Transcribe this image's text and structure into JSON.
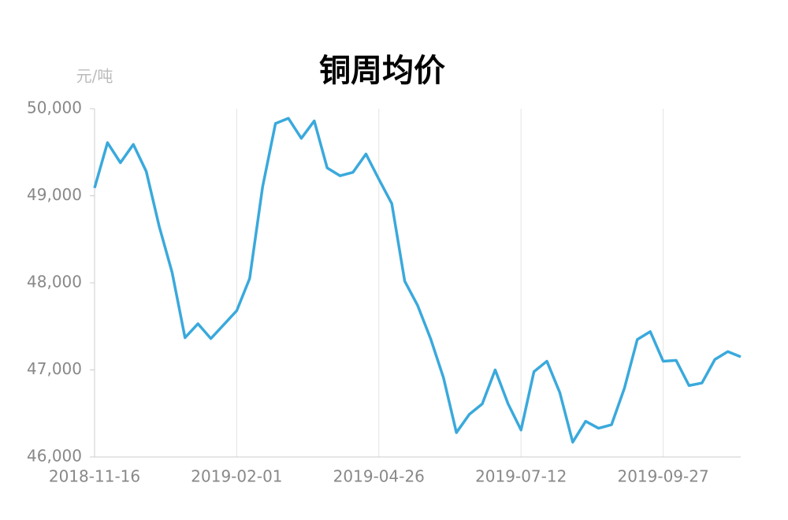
{
  "chart_data": {
    "type": "line",
    "title": "铜周均价",
    "y_label": "元/吨",
    "categories": [
      "2018-11-16",
      null,
      null,
      null,
      null,
      null,
      null,
      null,
      null,
      null,
      null,
      "2019-02-01",
      null,
      null,
      null,
      null,
      null,
      null,
      null,
      null,
      null,
      null,
      "2019-04-26",
      null,
      null,
      null,
      null,
      null,
      null,
      null,
      null,
      null,
      null,
      "2019-07-12",
      null,
      null,
      null,
      null,
      null,
      null,
      null,
      null,
      null,
      null,
      "2019-09-27",
      null,
      null,
      null,
      null,
      null,
      null
    ],
    "series": [
      {
        "name": "铜周均价",
        "color": "#3aa9dc",
        "values": [
          49090,
          49610,
          49380,
          49590,
          49280,
          48650,
          48120,
          47370,
          47530,
          47360,
          47520,
          47680,
          48050,
          49100,
          49830,
          49890,
          49660,
          49860,
          49320,
          49230,
          49270,
          49480,
          49190,
          48910,
          48020,
          47740,
          47360,
          46910,
          46280,
          46490,
          46610,
          47000,
          46610,
          46310,
          46980,
          47100,
          46740,
          46170,
          46410,
          46330,
          46370,
          46790,
          47350,
          47440,
          47100,
          47110,
          46820,
          46850,
          47120,
          47210,
          47150
        ]
      }
    ],
    "ylim": [
      46000,
      50000
    ],
    "yticks": [
      {
        "value": 46000,
        "label": "46,000"
      },
      {
        "value": 47000,
        "label": "47,000"
      },
      {
        "value": 48000,
        "label": "48,000"
      },
      {
        "value": 49000,
        "label": "49,000"
      },
      {
        "value": 50000,
        "label": "50,000"
      }
    ],
    "grid": true
  }
}
